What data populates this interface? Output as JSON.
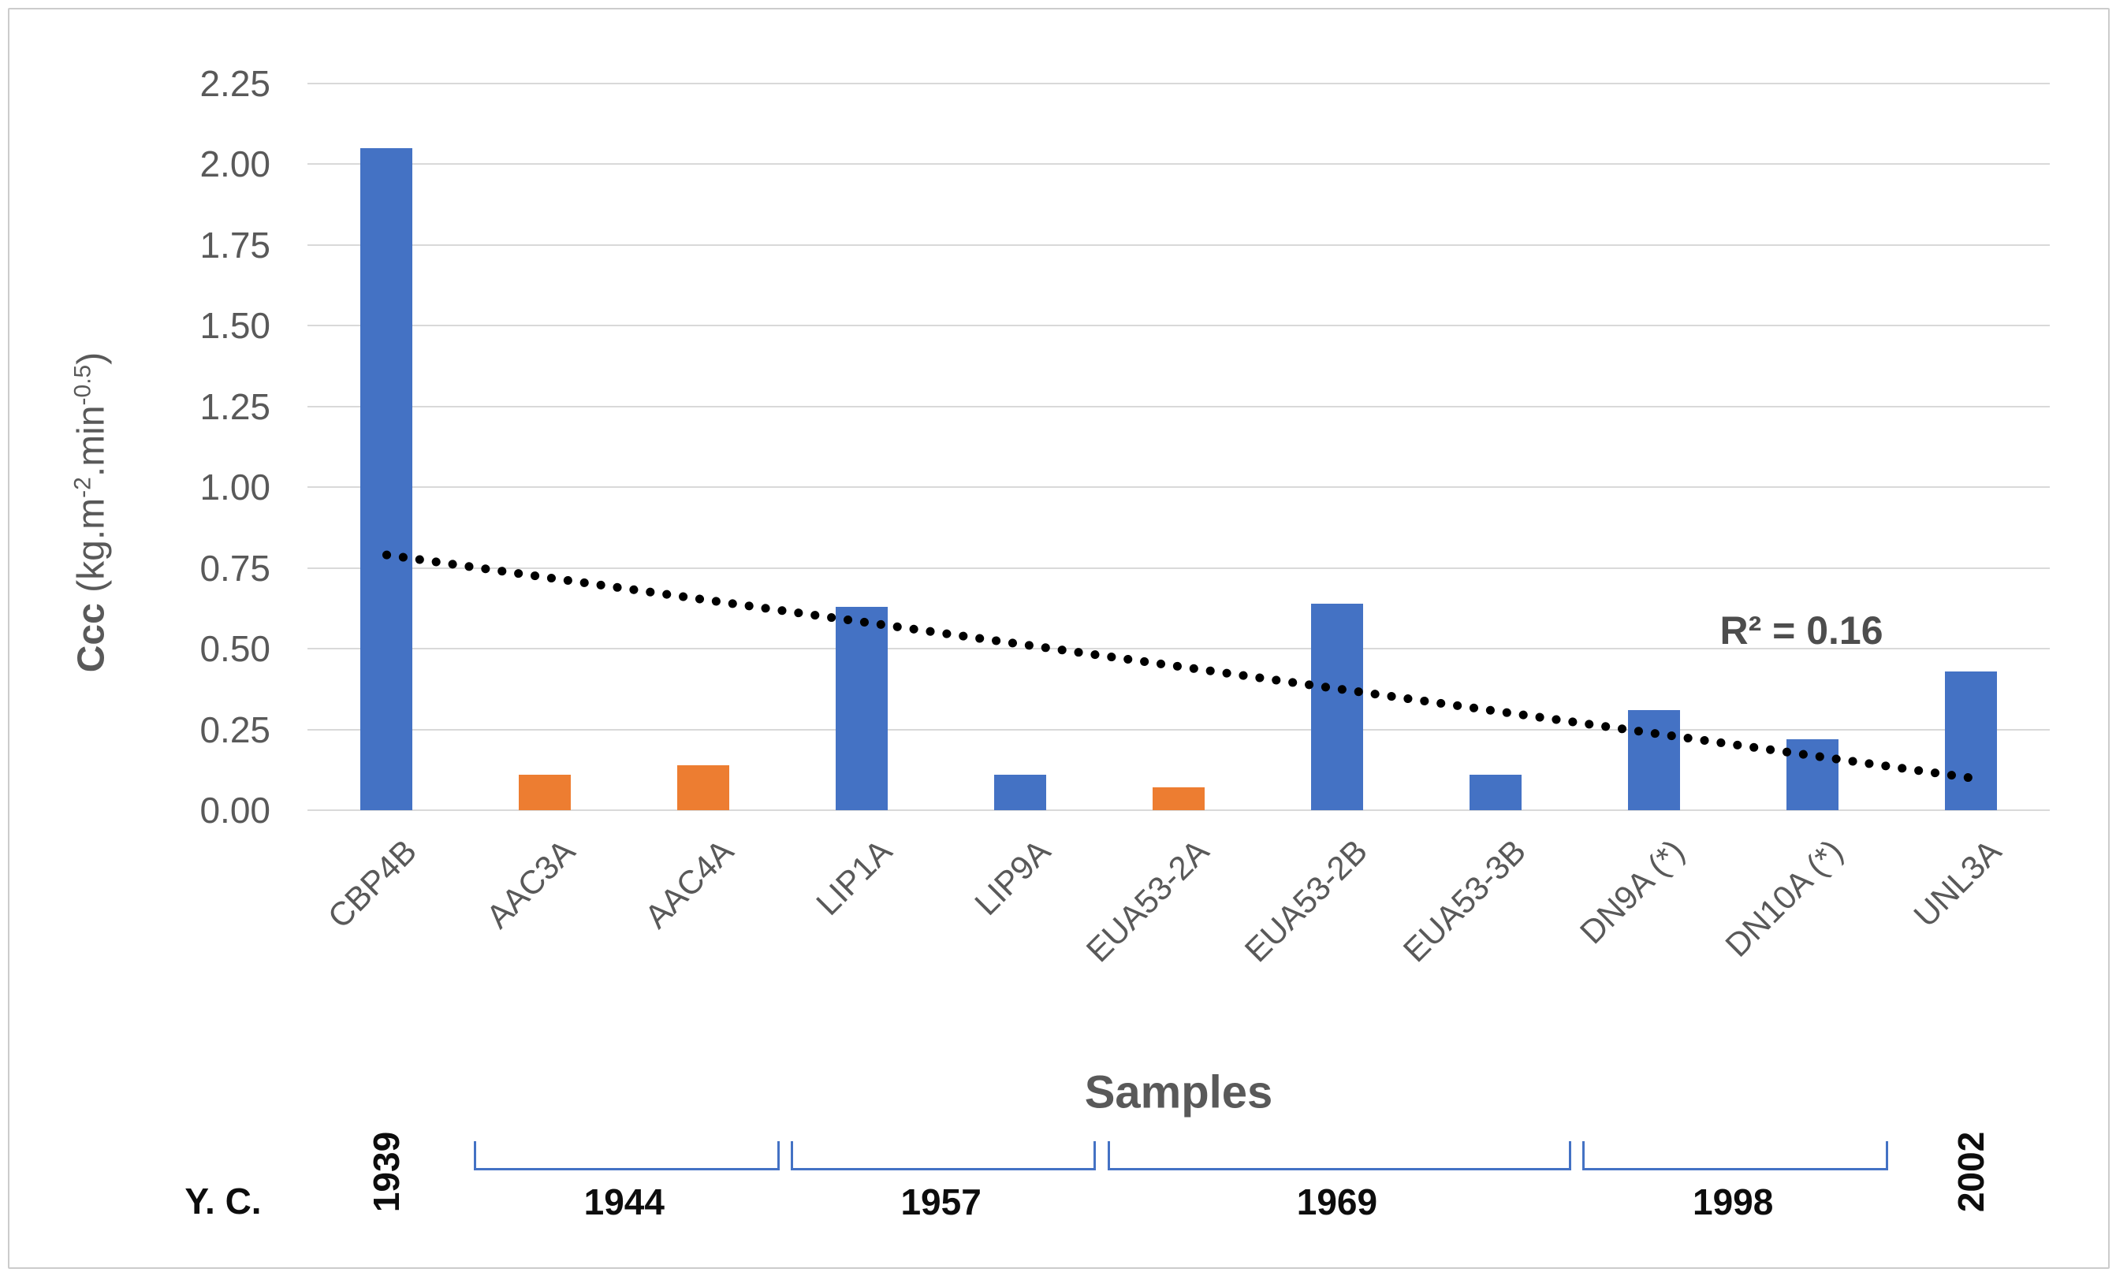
{
  "figure": {
    "x_axis_title": "Samples",
    "yc_label": "Y. C.",
    "r_squared_label": "R² = 0.16",
    "y_axis_title_bold": "Ccc",
    "y_axis_title_parts": [
      {
        "t": " (kg.m"
      },
      {
        "t": "-2",
        "sup": true
      },
      {
        "t": ".min"
      },
      {
        "t": "-0.5",
        "sup": true
      },
      {
        "t": ")"
      }
    ]
  },
  "colors": {
    "blue_bar": "#4472c4",
    "orange_bar": "#ed7d31",
    "gridline": "#d9d9d9",
    "axis_text": "#595959",
    "annotation_text": "#0d0d0d",
    "bracket_blue": "#4472c4",
    "trendline_black": "#000000"
  },
  "chart_data": {
    "type": "bar",
    "title": "",
    "xlabel": "Samples",
    "ylabel": "Ccc (kg.m-2.min-0.5)",
    "categories": [
      "CBP4B",
      "AAC3A",
      "AAC4A",
      "LIP1A",
      "LIP9A",
      "EUA53-2A",
      "EUA53-2B",
      "EUA53-3B",
      "DN9A (*)",
      "DN10A (*)",
      "UNL3A"
    ],
    "values": [
      2.05,
      0.11,
      0.14,
      0.63,
      0.11,
      0.07,
      0.64,
      0.11,
      0.31,
      0.22,
      0.43
    ],
    "bar_colors": [
      "blue",
      "orange",
      "orange",
      "blue",
      "blue",
      "orange",
      "blue",
      "blue",
      "blue",
      "blue",
      "blue"
    ],
    "ylim": [
      0,
      2.25
    ],
    "ytick_step": 0.25,
    "ytick_decimals": 2,
    "grid": "horizontal",
    "legend": "none",
    "trendline": {
      "style": "dotted",
      "r_squared": 0.16,
      "start_category_index": 0,
      "end_category_index": 10,
      "start_value": 0.79,
      "end_value": 0.1
    },
    "year_of_construction_groups": [
      {
        "label": "1939",
        "from_index": 0,
        "to_index": 0,
        "style": "vertical-label"
      },
      {
        "label": "1944",
        "from_index": 1,
        "to_index": 2,
        "style": "bracket"
      },
      {
        "label": "1957",
        "from_index": 3,
        "to_index": 4,
        "style": "bracket"
      },
      {
        "label": "1969",
        "from_index": 5,
        "to_index": 7,
        "style": "bracket"
      },
      {
        "label": "1998",
        "from_index": 8,
        "to_index": 9,
        "style": "bracket"
      },
      {
        "label": "2002",
        "from_index": 10,
        "to_index": 10,
        "style": "vertical-label"
      }
    ]
  },
  "layout_note_values_visible_only": true
}
